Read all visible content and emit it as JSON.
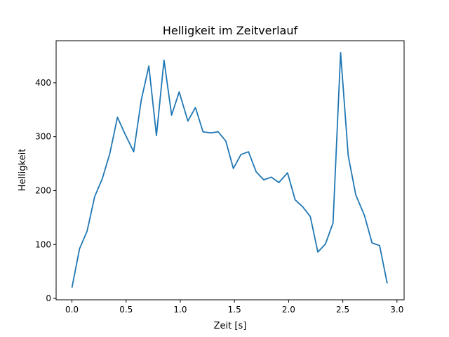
{
  "chart_data": {
    "type": "line",
    "title": "Helligkeit im Zeitverlauf",
    "xlabel": "Zeit [s]",
    "ylabel": "Helligkeit",
    "xlim": [
      -0.146,
      3.066
    ],
    "ylim": [
      -2.5,
      478
    ],
    "xticks": [
      0.0,
      0.5,
      1.0,
      1.5,
      2.0,
      2.5,
      3.0
    ],
    "xtick_labels": [
      "0.0",
      "0.5",
      "1.0",
      "1.5",
      "2.0",
      "2.5",
      "3.0"
    ],
    "yticks": [
      0,
      100,
      200,
      300,
      400
    ],
    "ytick_labels": [
      "0",
      "100",
      "200",
      "300",
      "400"
    ],
    "grid": false,
    "line_color": "#1f77b4",
    "x": [
      0.0,
      0.07,
      0.14,
      0.21,
      0.28,
      0.35,
      0.42,
      0.49,
      0.57,
      0.64,
      0.71,
      0.78,
      0.85,
      0.92,
      0.99,
      1.07,
      1.14,
      1.21,
      1.28,
      1.35,
      1.42,
      1.49,
      1.56,
      1.63,
      1.7,
      1.77,
      1.84,
      1.91,
      1.99,
      2.06,
      2.13,
      2.2,
      2.27,
      2.34,
      2.41,
      2.48,
      2.55,
      2.62,
      2.7,
      2.77,
      2.84,
      2.91
    ],
    "series": [
      {
        "values": [
          20,
          92,
          125,
          189,
          222,
          269,
          336,
          305,
          272,
          368,
          431,
          302,
          442,
          340,
          383,
          329,
          354,
          309,
          307,
          309,
          292,
          241,
          267,
          272,
          235,
          220,
          225,
          215,
          233,
          183,
          170,
          152,
          86,
          101,
          140,
          456,
          265,
          192,
          154,
          103,
          98,
          28
        ]
      }
    ]
  }
}
